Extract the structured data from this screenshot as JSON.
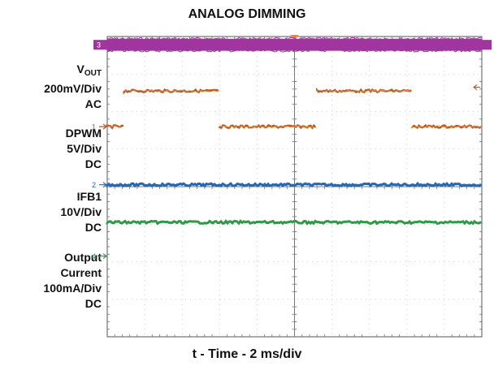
{
  "chart_data": {
    "type": "line",
    "title": "ANALOG DIMMING",
    "xlabel": "t - Time - 2 ms/div",
    "x_divisions": 10,
    "y_divisions": 8,
    "channels": [
      {
        "id": "ch3",
        "marker": "3",
        "label_lines": [
          "V",
          "200mV/Div",
          "AC"
        ],
        "label_main": "V",
        "label_sub": "OUT",
        "color": "#a0359f",
        "kind": "band",
        "level_div": 0.22,
        "thickness_div": 0.32,
        "marker_div": 0.22
      },
      {
        "id": "ch1",
        "marker": "1",
        "label_lines": [
          "DPWM",
          "5V/Div",
          "DC"
        ],
        "color": "#c0542a",
        "kind": "pwm",
        "low_div": 2.4,
        "high_div": 1.45,
        "transitions": [
          {
            "t": 0.0,
            "level": "low"
          },
          {
            "t": 0.09,
            "level": "high"
          },
          {
            "t": 0.6,
            "level": "low"
          },
          {
            "t": 1.12,
            "level": "high"
          },
          {
            "t": 1.63,
            "level": "low"
          }
        ],
        "marker_div": 2.4,
        "right_marker_div": 1.35
      },
      {
        "id": "ch2",
        "marker": "2",
        "label_lines": [
          "IFB1",
          "10V/Div",
          "DC"
        ],
        "color": "#2268b8",
        "kind": "flat",
        "level_div": 3.95,
        "marker_div": 3.95
      },
      {
        "id": "ch4",
        "marker": "4",
        "label_lines": [
          "Output",
          "Current",
          "100mA/Div",
          "DC"
        ],
        "color": "#2e9a45",
        "kind": "flat",
        "level_div": 4.95,
        "marker_div": 5.85
      }
    ],
    "trigger_marker_color": "#f08a24"
  }
}
